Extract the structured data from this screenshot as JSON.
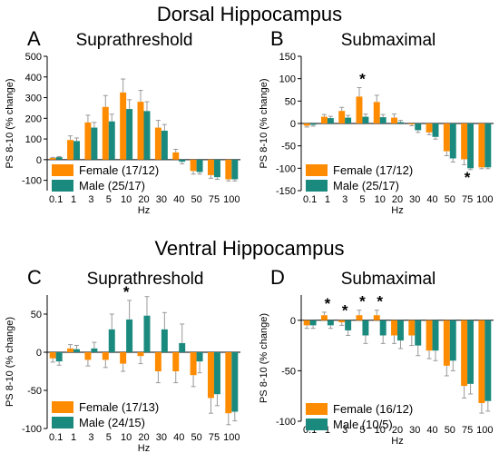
{
  "sections": {
    "dorsal": "Dorsal Hippocampus",
    "ventral": "Ventral Hippocampus"
  },
  "colors": {
    "female": "#ff8c00",
    "male": "#1b8a7e",
    "error": "#999999"
  },
  "chart_data": [
    {
      "panel": "A",
      "type": "bar",
      "title": "Suprathreshold",
      "xlabel": "Hz",
      "ylabel": "PS 8-10 (% change)",
      "categories": [
        "0.1",
        "1",
        "3",
        "5",
        "10",
        "20",
        "30",
        "40",
        "50",
        "75",
        "100"
      ],
      "ylim": [
        -150,
        500
      ],
      "yticks": [
        -100,
        0,
        100,
        200,
        300,
        400,
        500
      ],
      "legend": "bottom-left",
      "series": [
        {
          "name": "Female (17/12)",
          "values": [
            8,
            95,
            180,
            255,
            325,
            280,
            155,
            35,
            -55,
            -75,
            -95
          ],
          "errors": [
            3,
            20,
            35,
            55,
            65,
            55,
            35,
            15,
            15,
            15,
            8
          ]
        },
        {
          "name": "Male (25/17)",
          "values": [
            12,
            90,
            155,
            185,
            245,
            235,
            140,
            -10,
            -60,
            -85,
            -95
          ],
          "errors": [
            3,
            15,
            25,
            35,
            45,
            45,
            30,
            10,
            10,
            10,
            8
          ]
        }
      ],
      "significant": []
    },
    {
      "panel": "B",
      "type": "bar",
      "title": "Submaximal",
      "xlabel": "Hz",
      "ylabel": "PS 8-10 (% change)",
      "categories": [
        "0.1",
        "1",
        "3",
        "5",
        "10",
        "20",
        "30",
        "40",
        "50",
        "75",
        "100"
      ],
      "ylim": [
        -150,
        150
      ],
      "yticks": [
        -150,
        -100,
        -50,
        0,
        50,
        100,
        150
      ],
      "legend": "bottom-left",
      "series": [
        {
          "name": "Female (17/12)",
          "values": [
            -5,
            15,
            28,
            60,
            48,
            13,
            -2,
            -20,
            -62,
            -80,
            -98
          ],
          "errors": [
            3,
            5,
            8,
            20,
            15,
            8,
            3,
            5,
            10,
            12,
            3
          ]
        },
        {
          "name": "Male (25/17)",
          "values": [
            -3,
            12,
            13,
            15,
            14,
            3,
            -15,
            -30,
            -78,
            -100,
            -98
          ],
          "errors": [
            3,
            4,
            5,
            6,
            6,
            4,
            5,
            5,
            8,
            3,
            3
          ]
        }
      ],
      "significant": [
        3,
        9
      ],
      "significant_label": "*"
    },
    {
      "panel": "C",
      "type": "bar",
      "title": "Suprathreshold",
      "xlabel": "Hz",
      "ylabel": "PS 8-10 (% change)",
      "categories": [
        "0.1",
        "1",
        "3",
        "5",
        "10",
        "20",
        "30",
        "40",
        "50",
        "75",
        "100"
      ],
      "ylim": [
        -100,
        75
      ],
      "yticks": [
        -100,
        -50,
        0,
        50
      ],
      "legend": "bottom-left",
      "series": [
        {
          "name": "Female (17/13)",
          "values": [
            -8,
            5,
            -10,
            -10,
            -15,
            -5,
            -25,
            -25,
            -30,
            -60,
            -80
          ],
          "errors": [
            5,
            5,
            8,
            10,
            10,
            10,
            15,
            15,
            15,
            20,
            15
          ]
        },
        {
          "name": "Male (24/15)",
          "values": [
            -12,
            4,
            5,
            30,
            43,
            48,
            30,
            12,
            -12,
            -55,
            -78
          ],
          "errors": [
            5,
            5,
            8,
            20,
            25,
            25,
            22,
            25,
            15,
            15,
            12
          ]
        }
      ],
      "significant": [
        4
      ],
      "significant_label": "*"
    },
    {
      "panel": "D",
      "type": "bar",
      "title": "Submaximal",
      "xlabel": "Hz",
      "ylabel": "PS 8-10 (% change)",
      "categories": [
        "0.1",
        "1",
        "3",
        "5",
        "10",
        "20",
        "30",
        "40",
        "50",
        "75",
        "100"
      ],
      "ylim": [
        -100,
        25
      ],
      "yticks": [
        -100,
        -50,
        0
      ],
      "legend": "bottom-left",
      "series": [
        {
          "name": "Female (16/12)",
          "values": [
            -5,
            5,
            -2,
            5,
            5,
            -15,
            -15,
            -30,
            -45,
            -65,
            -82
          ],
          "errors": [
            3,
            3,
            3,
            5,
            5,
            8,
            10,
            8,
            10,
            12,
            10
          ]
        },
        {
          "name": "Male (10/5)",
          "values": [
            -5,
            -5,
            -10,
            -15,
            -15,
            -20,
            -25,
            -30,
            -40,
            -63,
            -80
          ],
          "errors": [
            3,
            3,
            5,
            8,
            8,
            8,
            10,
            10,
            10,
            10,
            10
          ]
        }
      ],
      "significant": [
        1,
        2,
        3,
        4
      ],
      "significant_label": "*"
    }
  ]
}
